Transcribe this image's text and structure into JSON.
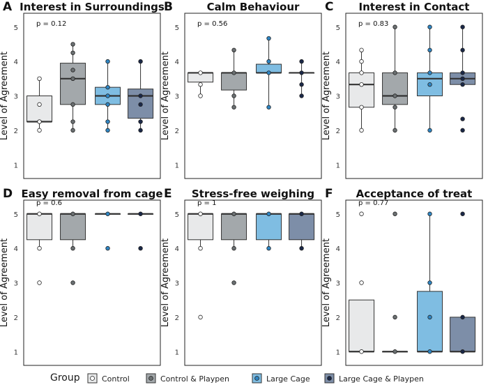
{
  "groups": [
    {
      "name": "Control",
      "color": "#e8e9ea",
      "point": "#ffffff"
    },
    {
      "name": "Control & Playpen",
      "color": "#a3a8ab",
      "point": "#6b7072"
    },
    {
      "name": "Large Cage",
      "color": "#7fbde2",
      "point": "#2f86c4"
    },
    {
      "name": "Large Cage & Playpen",
      "color": "#7d8ea8",
      "point": "#1a2848"
    }
  ],
  "legend": {
    "title": "Group"
  },
  "chart_data": [
    {
      "panel": "A",
      "title": "Interest in Surroundings",
      "type": "box",
      "ylabel": "Level of Agreement",
      "ylim": [
        0.6,
        5.4
      ],
      "yticks": [
        1,
        2,
        3,
        4,
        5
      ],
      "pvalue": "p = 0.12",
      "boxes": [
        {
          "group": "Control",
          "q1": 2.25,
          "median": 2.25,
          "q3": 3.0,
          "min": 2.0,
          "max": 3.5,
          "points": [
            2.0,
            2.25,
            2.25,
            2.75,
            3.5
          ]
        },
        {
          "group": "Control & Playpen",
          "q1": 2.75,
          "median": 3.5,
          "q3": 3.95,
          "min": 2.0,
          "max": 4.5,
          "points": [
            2.0,
            2.25,
            2.75,
            3.5,
            3.75,
            4.25,
            4.5
          ]
        },
        {
          "group": "Large Cage",
          "q1": 2.75,
          "median": 3.0,
          "q3": 3.25,
          "min": 2.0,
          "max": 4.0,
          "points": [
            2.0,
            2.25,
            2.75,
            3.0,
            3.25,
            4.0
          ]
        },
        {
          "group": "Large Cage & Playpen",
          "q1": 2.35,
          "median": 3.0,
          "q3": 3.2,
          "min": 2.0,
          "max": 4.0,
          "points": [
            2.0,
            2.25,
            2.75,
            3.0,
            4.0
          ]
        }
      ]
    },
    {
      "panel": "B",
      "title": "Calm Behaviour",
      "type": "box",
      "ylabel": "Level of Agreement",
      "ylim": [
        0.6,
        5.4
      ],
      "yticks": [
        1,
        2,
        3,
        4,
        5
      ],
      "pvalue": "p = 0.56",
      "boxes": [
        {
          "group": "Control",
          "q1": 3.4,
          "median": 3.67,
          "q3": 3.67,
          "min": 3.0,
          "max": 3.67,
          "points": [
            3.0,
            3.33,
            3.67
          ]
        },
        {
          "group": "Control & Playpen",
          "q1": 3.17,
          "median": 3.67,
          "q3": 3.67,
          "min": 2.67,
          "max": 4.33,
          "points": [
            2.67,
            3.0,
            3.67,
            4.33
          ]
        },
        {
          "group": "Large Cage",
          "q1": 3.67,
          "median": 3.67,
          "q3": 3.92,
          "min": 2.67,
          "max": 4.67,
          "points": [
            2.67,
            3.67,
            4.0,
            4.67
          ]
        },
        {
          "group": "Large Cage & Playpen",
          "q1": 3.67,
          "median": 3.67,
          "q3": 3.67,
          "min": 3.0,
          "max": 4.0,
          "points": [
            3.0,
            3.33,
            3.67,
            4.0
          ]
        }
      ]
    },
    {
      "panel": "C",
      "title": "Interest in Contact",
      "type": "box",
      "ylabel": "Level of Agreement",
      "ylim": [
        0.6,
        5.4
      ],
      "yticks": [
        1,
        2,
        3,
        4,
        5
      ],
      "pvalue": "p = 0.83",
      "boxes": [
        {
          "group": "Control",
          "q1": 2.67,
          "median": 3.33,
          "q3": 3.67,
          "min": 2.0,
          "max": 4.33,
          "points": [
            2.0,
            2.67,
            3.33,
            3.67,
            4.0,
            4.33
          ]
        },
        {
          "group": "Control & Playpen",
          "q1": 2.75,
          "median": 3.0,
          "q3": 3.67,
          "min": 2.0,
          "max": 5.0,
          "points": [
            2.0,
            2.67,
            3.0,
            3.67,
            5.0
          ]
        },
        {
          "group": "Large Cage",
          "q1": 3.0,
          "median": 3.5,
          "q3": 3.67,
          "min": 2.0,
          "max": 5.0,
          "points": [
            2.0,
            3.33,
            3.67,
            4.33,
            5.0
          ]
        },
        {
          "group": "Large Cage & Playpen",
          "q1": 3.33,
          "median": 3.5,
          "q3": 3.67,
          "min": 3.33,
          "max": 5.0,
          "points": [
            2.0,
            2.33,
            3.33,
            3.5,
            3.67,
            4.33,
            5.0
          ]
        }
      ]
    },
    {
      "panel": "D",
      "title": "Easy removal from cage",
      "type": "box",
      "ylabel": "Level of Agreement",
      "ylim": [
        0.6,
        5.4
      ],
      "yticks": [
        1,
        2,
        3,
        4,
        5
      ],
      "pvalue": "p = 0.6",
      "boxes": [
        {
          "group": "Control",
          "q1": 4.25,
          "median": 5.0,
          "q3": 5.0,
          "min": 4.0,
          "max": 5.0,
          "points": [
            3.0,
            4.0,
            5.0
          ]
        },
        {
          "group": "Control & Playpen",
          "q1": 4.25,
          "median": 5.0,
          "q3": 5.0,
          "min": 4.0,
          "max": 5.0,
          "points": [
            3.0,
            4.0,
            5.0
          ]
        },
        {
          "group": "Large Cage",
          "q1": 5.0,
          "median": 5.0,
          "q3": 5.0,
          "min": 5.0,
          "max": 5.0,
          "points": [
            4.0,
            5.0
          ]
        },
        {
          "group": "Large Cage & Playpen",
          "q1": 5.0,
          "median": 5.0,
          "q3": 5.0,
          "min": 5.0,
          "max": 5.0,
          "points": [
            4.0,
            5.0
          ]
        }
      ]
    },
    {
      "panel": "E",
      "title": "Stress-free weighing",
      "type": "box",
      "ylabel": "Level of Agreement",
      "ylim": [
        0.6,
        5.4
      ],
      "yticks": [
        1,
        2,
        3,
        4,
        5
      ],
      "pvalue": "p = 1",
      "boxes": [
        {
          "group": "Control",
          "q1": 4.25,
          "median": 5.0,
          "q3": 5.0,
          "min": 4.0,
          "max": 5.0,
          "points": [
            2.0,
            4.0,
            5.0
          ]
        },
        {
          "group": "Control & Playpen",
          "q1": 4.25,
          "median": 5.0,
          "q3": 5.0,
          "min": 4.0,
          "max": 5.0,
          "points": [
            3.0,
            4.0,
            5.0
          ]
        },
        {
          "group": "Large Cage",
          "q1": 4.25,
          "median": 5.0,
          "q3": 5.0,
          "min": 4.0,
          "max": 5.0,
          "points": [
            4.0,
            5.0
          ]
        },
        {
          "group": "Large Cage & Playpen",
          "q1": 4.25,
          "median": 5.0,
          "q3": 5.0,
          "min": 4.0,
          "max": 5.0,
          "points": [
            4.0,
            5.0
          ]
        }
      ]
    },
    {
      "panel": "F",
      "title": "Acceptance of treat",
      "type": "box",
      "ylabel": "Level of Agreement",
      "ylim": [
        0.6,
        5.4
      ],
      "yticks": [
        1,
        2,
        3,
        4,
        5
      ],
      "pvalue": "p = 0.77",
      "boxes": [
        {
          "group": "Control",
          "q1": 1.0,
          "median": 1.0,
          "q3": 2.5,
          "min": 1.0,
          "max": 2.5,
          "points": [
            1.0,
            3.0,
            5.0
          ]
        },
        {
          "group": "Control & Playpen",
          "q1": 1.0,
          "median": 1.0,
          "q3": 1.0,
          "min": 1.0,
          "max": 1.0,
          "points": [
            1.0,
            2.0,
            5.0
          ]
        },
        {
          "group": "Large Cage",
          "q1": 1.0,
          "median": 1.0,
          "q3": 2.75,
          "min": 1.0,
          "max": 5.0,
          "points": [
            1.0,
            2.0,
            3.0,
            5.0
          ]
        },
        {
          "group": "Large Cage & Playpen",
          "q1": 1.0,
          "median": 1.0,
          "q3": 2.0,
          "min": 1.0,
          "max": 2.0,
          "points": [
            1.0,
            2.0,
            5.0
          ]
        }
      ]
    }
  ]
}
